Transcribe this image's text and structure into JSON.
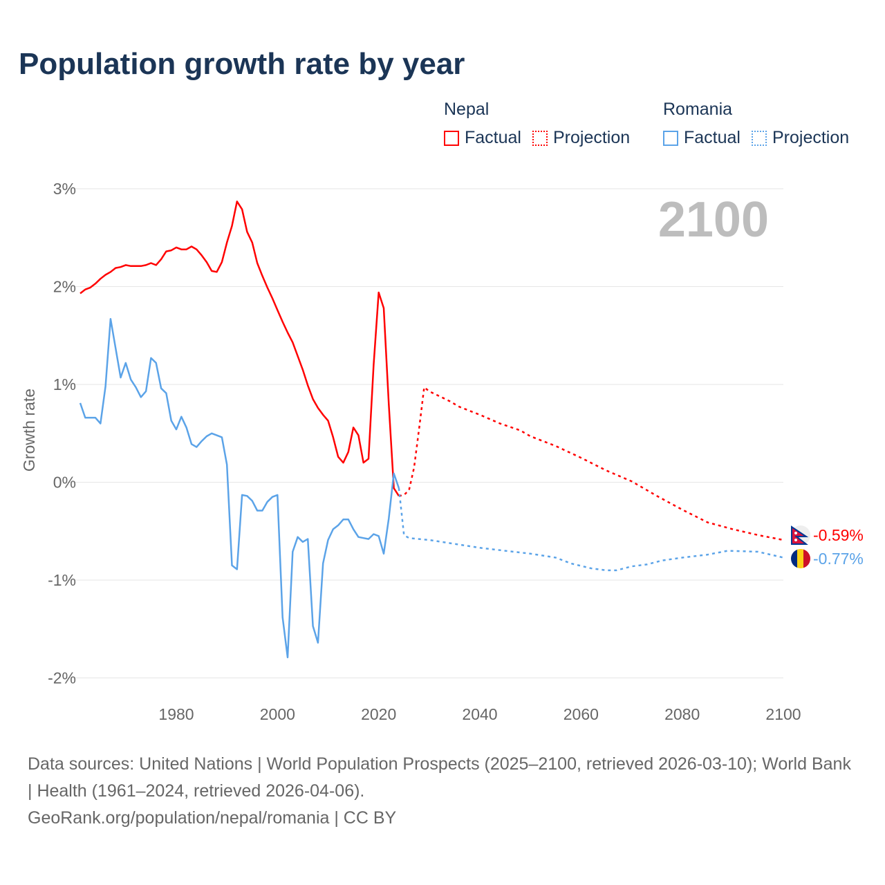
{
  "title": "Population growth rate by year",
  "legend": {
    "groups": [
      {
        "name": "Nepal",
        "factual": "Factual",
        "projection": "Projection",
        "color": "#ff0000"
      },
      {
        "name": "Romania",
        "factual": "Factual",
        "projection": "Projection",
        "color": "#5ba3e8"
      }
    ]
  },
  "year_label": "2100",
  "end_labels": {
    "nepal": "-0.59%",
    "romania": "-0.77%",
    "nepal_flag": "nepal-flag-icon",
    "romania_flag": "romania-flag-icon"
  },
  "footer": {
    "sources": "Data sources: United Nations | World Population Prospects (2025–2100, retrieved 2026-03-10); World Bank | Health (1961–2024, retrieved 2026-04-06).",
    "credit": "GeoRank.org/population/nepal/romania | CC BY"
  },
  "chart_data": {
    "type": "line",
    "title": "Population growth rate by year",
    "xlabel": "",
    "ylabel": "Growth rate",
    "xlim": [
      1961,
      2100
    ],
    "ylim": [
      -2.2,
      3.0
    ],
    "x_ticks": [
      1980,
      2000,
      2020,
      2040,
      2060,
      2080,
      2100
    ],
    "y_ticks": [
      {
        "v": 3,
        "label": "3%"
      },
      {
        "v": 2,
        "label": "2%"
      },
      {
        "v": 1,
        "label": "1%"
      },
      {
        "v": 0,
        "label": "0%"
      },
      {
        "v": -1,
        "label": "-1%"
      },
      {
        "v": -2,
        "label": "-2%"
      }
    ],
    "grid": true,
    "legend_position": "top-right",
    "series": [
      {
        "name": "Nepal Factual",
        "color": "#ff0000",
        "dashed": false,
        "x": [
          1961,
          1962,
          1963,
          1964,
          1965,
          1966,
          1967,
          1968,
          1969,
          1970,
          1971,
          1972,
          1973,
          1974,
          1975,
          1976,
          1977,
          1978,
          1979,
          1980,
          1981,
          1982,
          1983,
          1984,
          1985,
          1986,
          1987,
          1988,
          1989,
          1990,
          1991,
          1992,
          1993,
          1994,
          1995,
          1996,
          1997,
          1998,
          1999,
          2000,
          2001,
          2002,
          2003,
          2004,
          2005,
          2006,
          2007,
          2008,
          2009,
          2010,
          2011,
          2012,
          2013,
          2014,
          2015,
          2016,
          2017,
          2018,
          2019,
          2020,
          2021,
          2022,
          2023,
          2024
        ],
        "y": [
          1.93,
          1.97,
          1.99,
          2.03,
          2.08,
          2.12,
          2.15,
          2.19,
          2.2,
          2.22,
          2.21,
          2.21,
          2.21,
          2.22,
          2.24,
          2.22,
          2.28,
          2.36,
          2.37,
          2.4,
          2.38,
          2.38,
          2.41,
          2.38,
          2.32,
          2.25,
          2.16,
          2.15,
          2.25,
          2.45,
          2.62,
          2.87,
          2.79,
          2.56,
          2.45,
          2.24,
          2.11,
          1.99,
          1.88,
          1.76,
          1.64,
          1.53,
          1.43,
          1.29,
          1.15,
          0.99,
          0.85,
          0.76,
          0.69,
          0.63,
          0.46,
          0.26,
          0.2,
          0.31,
          0.56,
          0.48,
          0.2,
          0.24,
          1.2,
          1.94,
          1.78,
          0.8,
          -0.06,
          -0.14
        ]
      },
      {
        "name": "Nepal Projection",
        "color": "#ff0000",
        "dashed": true,
        "x": [
          2024,
          2025,
          2026,
          2027,
          2028,
          2029,
          2030,
          2032,
          2034,
          2036,
          2040,
          2044,
          2048,
          2050,
          2055,
          2060,
          2065,
          2070,
          2075,
          2080,
          2085,
          2090,
          2095,
          2100
        ],
        "y": [
          -0.14,
          -0.13,
          -0.08,
          0.15,
          0.55,
          0.97,
          0.93,
          0.88,
          0.83,
          0.77,
          0.69,
          0.6,
          0.53,
          0.47,
          0.37,
          0.25,
          0.12,
          0.01,
          -0.14,
          -0.28,
          -0.41,
          -0.48,
          -0.54,
          -0.59
        ]
      },
      {
        "name": "Romania Factual",
        "color": "#5ba3e8",
        "dashed": false,
        "x": [
          1961,
          1962,
          1963,
          1964,
          1965,
          1966,
          1967,
          1968,
          1969,
          1970,
          1971,
          1972,
          1973,
          1974,
          1975,
          1976,
          1977,
          1978,
          1979,
          1980,
          1981,
          1982,
          1983,
          1984,
          1985,
          1986,
          1987,
          1988,
          1989,
          1990,
          1991,
          1992,
          1993,
          1994,
          1995,
          1996,
          1997,
          1998,
          1999,
          2000,
          2001,
          2002,
          2003,
          2004,
          2005,
          2006,
          2007,
          2008,
          2009,
          2010,
          2011,
          2012,
          2013,
          2014,
          2015,
          2016,
          2017,
          2018,
          2019,
          2020,
          2021,
          2022,
          2023,
          2024
        ],
        "y": [
          0.81,
          0.66,
          0.66,
          0.66,
          0.6,
          0.98,
          1.67,
          1.37,
          1.07,
          1.22,
          1.05,
          0.97,
          0.87,
          0.93,
          1.27,
          1.22,
          0.96,
          0.91,
          0.63,
          0.54,
          0.67,
          0.56,
          0.39,
          0.36,
          0.42,
          0.47,
          0.5,
          0.48,
          0.46,
          0.18,
          -0.85,
          -0.89,
          -0.13,
          -0.14,
          -0.19,
          -0.29,
          -0.29,
          -0.2,
          -0.15,
          -0.13,
          -1.38,
          -1.79,
          -0.71,
          -0.56,
          -0.61,
          -0.58,
          -1.47,
          -1.64,
          -0.83,
          -0.59,
          -0.48,
          -0.44,
          -0.38,
          -0.38,
          -0.48,
          -0.56,
          -0.57,
          -0.58,
          -0.53,
          -0.55,
          -0.73,
          -0.37,
          0.09,
          -0.06
        ]
      },
      {
        "name": "Romania Projection",
        "color": "#5ba3e8",
        "dashed": true,
        "x": [
          2024,
          2025,
          2026,
          2030,
          2035,
          2040,
          2045,
          2050,
          2055,
          2058,
          2062,
          2065,
          2067,
          2070,
          2073,
          2076,
          2080,
          2085,
          2089,
          2095,
          2100
        ],
        "y": [
          -0.06,
          -0.54,
          -0.57,
          -0.59,
          -0.63,
          -0.67,
          -0.7,
          -0.73,
          -0.77,
          -0.83,
          -0.88,
          -0.9,
          -0.9,
          -0.86,
          -0.84,
          -0.8,
          -0.77,
          -0.74,
          -0.7,
          -0.71,
          -0.77
        ]
      }
    ]
  }
}
